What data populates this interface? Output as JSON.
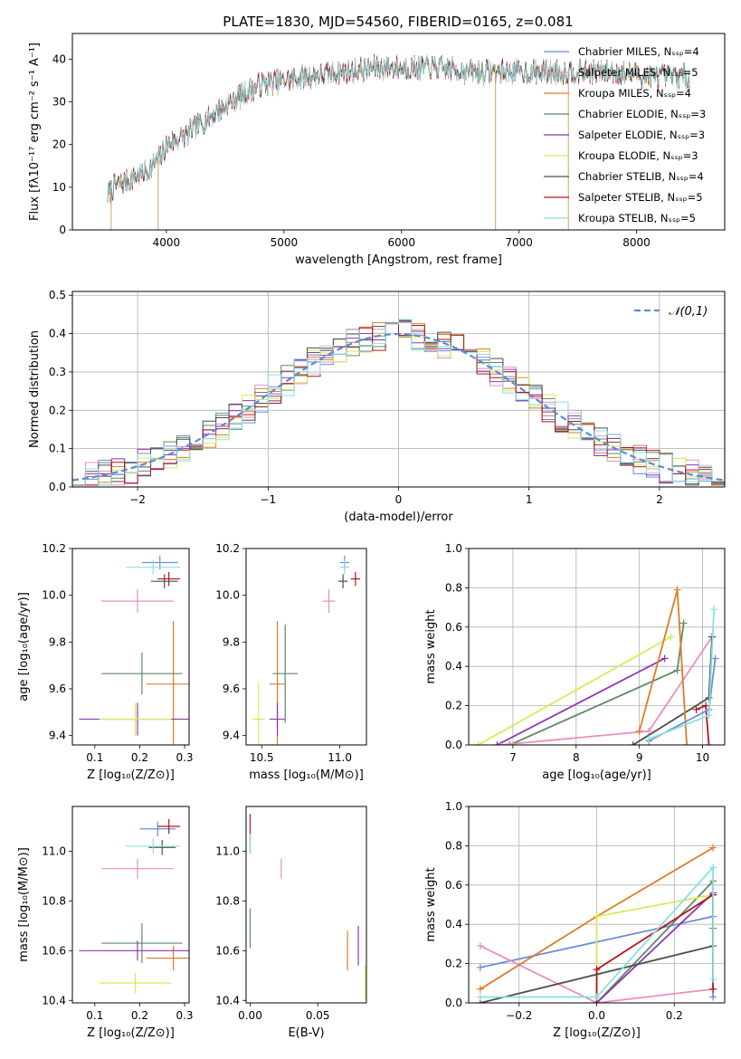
{
  "figure_title": "PLATE=1830, MJD=54560, FIBERID=0165, z=0.081",
  "series_colors": {
    "chabrier_miles": "#6a8fd6",
    "salpeter_miles": "#e88fc0",
    "kroupa_miles": "#e07b29",
    "chabrier_elodie": "#5f8a63",
    "salpeter_elodie": "#8e35b5",
    "kroupa_elodie": "#d6ea5a",
    "chabrier_stelib": "#4d4d4d",
    "salpeter_stelib": "#b0171b",
    "kroupa_stelib": "#8ae0e0"
  },
  "chart_data": [
    {
      "id": "spectrum",
      "type": "line",
      "xlabel": "wavelength [Angstrom, rest frame]",
      "ylabel": "Flux [fλ10⁻¹⁷ erg cm⁻² s⁻¹ A⁻¹]",
      "xlim": [
        3200,
        8750
      ],
      "ylim": [
        0,
        46
      ],
      "xticks": [
        "4000",
        "5000",
        "6000",
        "7000",
        "8000"
      ],
      "yticks": [
        "0",
        "10",
        "20",
        "30",
        "40"
      ],
      "grid": false,
      "legend_position": "top-right",
      "legend": [
        "Chabrier MILES, Nₛₛₚ=4",
        "Salpeter MILES, Nₛₛₚ=5",
        "Kroupa MILES, Nₛₛₚ=4",
        "Chabrier ELODIE, Nₛₛₚ=3",
        "Salpeter ELODIE, Nₛₛₚ=3",
        "Kroupa ELODIE, Nₛₛₚ=3",
        "Chabrier STELIB, Nₛₛₚ=4",
        "Salpeter STELIB, Nₛₛₚ=5",
        "Kroupa STELIB, Nₛₛₚ=5"
      ],
      "continuum": {
        "x": [
          3500,
          3550,
          3700,
          3850,
          3950,
          4000,
          4150,
          4300,
          4450,
          4600,
          4800,
          5000,
          5200,
          5500,
          5800,
          6000,
          6300,
          6600,
          6900,
          7200,
          7500,
          7800,
          8100,
          8400
        ],
        "y": [
          8,
          10,
          12,
          14,
          17,
          20,
          22,
          25,
          28,
          31,
          34,
          35,
          36,
          37,
          38,
          38,
          38,
          37,
          37,
          37,
          37,
          37,
          36,
          36
        ]
      },
      "drops": [
        {
          "x": 3530,
          "y": 0
        },
        {
          "x": 3930,
          "y": 0
        },
        {
          "x": 6800,
          "y": 0
        },
        {
          "x": 7420,
          "y": 0
        }
      ]
    },
    {
      "id": "residuals",
      "type": "histogram",
      "xlabel": "(data-model)/error",
      "ylabel": "Normed distribution",
      "xlim": [
        -2.5,
        2.5
      ],
      "ylim": [
        0,
        0.51
      ],
      "xticks": [
        "−2",
        "−1",
        "0",
        "1",
        "2"
      ],
      "yticks": [
        "0.0",
        "0.1",
        "0.2",
        "0.3",
        "0.4",
        "0.5"
      ],
      "grid": true,
      "legend_position": "top-right",
      "reference_curve": {
        "name": "𝒩(0,1)",
        "mean": 0,
        "sigma": 1
      },
      "bin_width": 0.1
    },
    {
      "id": "age_vs_Z",
      "type": "errorbar",
      "xlabel": "Z [log₁₀(Z/Z⊙)]",
      "ylabel": "age  [log₁₀(age/yr)]",
      "xlim": [
        0.05,
        0.31
      ],
      "ylim": [
        9.36,
        10.2
      ],
      "xticks": [
        "0.1",
        "0.2",
        "0.3"
      ],
      "yticks": [
        "9.4",
        "9.6",
        "9.8",
        "10.0",
        "10.2"
      ],
      "grid": false,
      "points": [
        {
          "key": "chabrier_miles",
          "x": 0.245,
          "y": 10.14,
          "xerr": 0.04,
          "yerr": 0.03
        },
        {
          "key": "salpeter_miles",
          "x": 0.195,
          "y": 9.975,
          "xerr": 0.08,
          "yerr": 0.05
        },
        {
          "key": "kroupa_miles",
          "x": 0.275,
          "y": 9.62,
          "xerr": 0.06,
          "yerr": 0.27
        },
        {
          "key": "chabrier_elodie",
          "x": 0.205,
          "y": 9.665,
          "xerr": 0.09,
          "yerr": 0.09
        },
        {
          "key": "salpeter_elodie",
          "x": 0.195,
          "y": 9.47,
          "xerr": 0.13,
          "yerr": 0.07
        },
        {
          "key": "kroupa_elodie",
          "x": 0.19,
          "y": 9.47,
          "xerr": 0.08,
          "yerr": 0.07
        },
        {
          "key": "chabrier_stelib",
          "x": 0.255,
          "y": 10.06,
          "xerr": 0.03,
          "yerr": 0.03
        },
        {
          "key": "salpeter_stelib",
          "x": 0.265,
          "y": 10.07,
          "xerr": 0.025,
          "yerr": 0.03
        },
        {
          "key": "kroupa_stelib",
          "x": 0.23,
          "y": 10.12,
          "xerr": 0.06,
          "yerr": 0.03
        }
      ]
    },
    {
      "id": "age_vs_mass",
      "type": "errorbar",
      "xlabel": "mass [log₁₀(M/M⊙)]",
      "ylabel": "",
      "xlim": [
        10.4,
        11.17
      ],
      "ylim": [
        9.36,
        10.2
      ],
      "xticks": [
        "10.5",
        "11.0"
      ],
      "yticks": [
        "9.4",
        "9.6",
        "9.8",
        "10.0",
        "10.2"
      ],
      "grid": false,
      "points": [
        {
          "key": "chabrier_miles",
          "x": 11.03,
          "y": 10.14,
          "xerr": 0.03,
          "yerr": 0.03
        },
        {
          "key": "salpeter_miles",
          "x": 10.93,
          "y": 9.975,
          "xerr": 0.04,
          "yerr": 0.05
        },
        {
          "key": "kroupa_miles",
          "x": 10.6,
          "y": 9.62,
          "xerr": 0.05,
          "yerr": 0.27
        },
        {
          "key": "chabrier_elodie",
          "x": 10.65,
          "y": 9.665,
          "xerr": 0.08,
          "yerr": 0.21
        },
        {
          "key": "salpeter_elodie",
          "x": 10.6,
          "y": 9.47,
          "xerr": 0.05,
          "yerr": 0.07
        },
        {
          "key": "kroupa_elodie",
          "x": 10.48,
          "y": 9.47,
          "xerr": 0.04,
          "yerr": 0.16
        },
        {
          "key": "chabrier_stelib",
          "x": 11.02,
          "y": 10.06,
          "xerr": 0.03,
          "yerr": 0.03
        },
        {
          "key": "salpeter_stelib",
          "x": 11.1,
          "y": 10.07,
          "xerr": 0.03,
          "yerr": 0.03
        },
        {
          "key": "kroupa_stelib",
          "x": 11.03,
          "y": 10.12,
          "xerr": 0.03,
          "yerr": 0.03
        }
      ]
    },
    {
      "id": "weight_vs_age",
      "type": "line",
      "xlabel": "age  [log₁₀(age/yr)]",
      "ylabel": "mass weight",
      "xlim": [
        6.3,
        10.35
      ],
      "ylim": [
        0,
        1
      ],
      "xticks": [
        "7",
        "8",
        "9",
        "10"
      ],
      "yticks": [
        "0.0",
        "0.2",
        "0.4",
        "0.6",
        "0.8",
        "1.0"
      ],
      "grid": true,
      "series": [
        {
          "key": "salpeter_elodie",
          "x": [
            6.75,
            9.4
          ],
          "y": [
            0.0,
            0.44
          ]
        },
        {
          "key": "kroupa_elodie",
          "x": [
            6.45,
            9.5
          ],
          "y": [
            0.0,
            0.55
          ]
        },
        {
          "key": "chabrier_elodie",
          "x": [
            6.95,
            9.6,
            9.7
          ],
          "y": [
            0.0,
            0.38,
            0.62
          ]
        },
        {
          "key": "salpeter_miles",
          "x": [
            6.8,
            9.15,
            10.15
          ],
          "y": [
            0.0,
            0.07,
            0.55
          ]
        },
        {
          "key": "chabrier_stelib",
          "x": [
            8.9,
            10.1,
            10.15
          ],
          "y": [
            0.0,
            0.24,
            0.55
          ]
        },
        {
          "key": "kroupa_miles",
          "x": [
            9.0,
            9.6,
            9.75
          ],
          "y": [
            0.07,
            0.79,
            0.0
          ]
        },
        {
          "key": "salpeter_stelib",
          "x": [
            9.9,
            10.05,
            10.1
          ],
          "y": [
            0.18,
            0.2,
            0.0
          ]
        },
        {
          "key": "chabrier_miles",
          "x": [
            9.15,
            10.1,
            10.2
          ],
          "y": [
            0.02,
            0.18,
            0.44
          ]
        },
        {
          "key": "kroupa_stelib",
          "x": [
            9.15,
            10.1,
            10.18
          ],
          "y": [
            0.03,
            0.15,
            0.69
          ]
        }
      ]
    },
    {
      "id": "mass_vs_Z",
      "type": "errorbar",
      "xlabel": "Z [log₁₀(Z/Z⊙)]",
      "ylabel": "mass [log₁₀(M/M⊙)]",
      "xlim": [
        0.05,
        0.31
      ],
      "ylim": [
        10.39,
        11.18
      ],
      "xticks": [
        "0.1",
        "0.2",
        "0.3"
      ],
      "yticks": [
        "10.4",
        "10.6",
        "10.8",
        "11.0"
      ],
      "grid": false,
      "points": [
        {
          "key": "chabrier_miles",
          "x": 0.24,
          "y": 11.09,
          "xerr": 0.04,
          "yerr": 0.03
        },
        {
          "key": "salpeter_miles",
          "x": 0.195,
          "y": 10.93,
          "xerr": 0.08,
          "yerr": 0.04
        },
        {
          "key": "kroupa_miles",
          "x": 0.275,
          "y": 10.57,
          "xerr": 0.06,
          "yerr": 0.05
        },
        {
          "key": "chabrier_elodie",
          "x": 0.205,
          "y": 10.63,
          "xerr": 0.09,
          "yerr": 0.08
        },
        {
          "key": "salpeter_elodie",
          "x": 0.195,
          "y": 10.6,
          "xerr": 0.13,
          "yerr": 0.04
        },
        {
          "key": "kroupa_elodie",
          "x": 0.19,
          "y": 10.47,
          "xerr": 0.08,
          "yerr": 0.04
        },
        {
          "key": "chabrier_stelib",
          "x": 0.25,
          "y": 11.015,
          "xerr": 0.03,
          "yerr": 0.03
        },
        {
          "key": "salpeter_stelib",
          "x": 0.265,
          "y": 11.1,
          "xerr": 0.025,
          "yerr": 0.03
        },
        {
          "key": "kroupa_stelib",
          "x": 0.23,
          "y": 11.02,
          "xerr": 0.06,
          "yerr": 0.03
        }
      ]
    },
    {
      "id": "mass_vs_ebv",
      "type": "errorbar",
      "xlabel": "E(B-V)",
      "ylabel": "",
      "xlim": [
        -0.003,
        0.086
      ],
      "ylim": [
        10.39,
        11.18
      ],
      "xticks": [
        "0.00",
        "0.05"
      ],
      "yticks": [
        "10.4",
        "10.6",
        "10.8",
        "11.0"
      ],
      "grid": false,
      "points": [
        {
          "key": "chabrier_miles",
          "x": 0.0,
          "y": 11.04,
          "xerr": 0,
          "yerr": 0.03
        },
        {
          "key": "salpeter_miles",
          "x": 0.023,
          "y": 10.93,
          "xerr": 0,
          "yerr": 0.04
        },
        {
          "key": "kroupa_miles",
          "x": 0.072,
          "y": 10.6,
          "xerr": 0,
          "yerr": 0.08
        },
        {
          "key": "chabrier_elodie",
          "x": 0.0,
          "y": 10.69,
          "xerr": 0,
          "yerr": 0.08
        },
        {
          "key": "salpeter_elodie",
          "x": 0.08,
          "y": 10.62,
          "xerr": 0,
          "yerr": 0.08
        },
        {
          "key": "kroupa_elodie",
          "x": 0.085,
          "y": 10.47,
          "xerr": 0,
          "yerr": 0.07
        },
        {
          "key": "chabrier_stelib",
          "x": 0.0,
          "y": 11.02,
          "xerr": 0,
          "yerr": 0.03
        },
        {
          "key": "salpeter_stelib",
          "x": 0.0,
          "y": 11.1,
          "xerr": 0,
          "yerr": 0.05
        },
        {
          "key": "kroupa_stelib",
          "x": 0.0,
          "y": 11.03,
          "xerr": 0,
          "yerr": 0.04
        }
      ]
    },
    {
      "id": "weight_vs_Z",
      "type": "line",
      "xlabel": "Z [log₁₀(Z/Z⊙)]",
      "ylabel": "mass weight",
      "xlim": [
        -0.33,
        0.33
      ],
      "ylim": [
        0,
        1
      ],
      "xticks": [
        "−0.2",
        "0.0",
        "0.2"
      ],
      "yticks": [
        "0.0",
        "0.2",
        "0.4",
        "0.6",
        "0.8",
        "1.0"
      ],
      "grid": true,
      "series": [
        {
          "key": "chabrier_miles",
          "x": [
            -0.3,
            0.3,
            0.3
          ],
          "y": [
            0.18,
            0.44,
            0.03
          ]
        },
        {
          "key": "salpeter_miles",
          "x": [
            -0.3,
            0.0,
            0.3
          ],
          "y": [
            0.29,
            0.0,
            0.07
          ]
        },
        {
          "key": "kroupa_miles",
          "x": [
            -0.3,
            0.0,
            0.3
          ],
          "y": [
            0.07,
            0.44,
            0.79
          ]
        },
        {
          "key": "chabrier_elodie",
          "x": [
            0.0,
            0.3,
            0.3
          ],
          "y": [
            0.0,
            0.62,
            0.38
          ]
        },
        {
          "key": "salpeter_elodie",
          "x": [
            0.0,
            0.3
          ],
          "y": [
            0.0,
            0.56
          ]
        },
        {
          "key": "kroupa_elodie",
          "x": [
            0.0,
            0.0,
            0.3
          ],
          "y": [
            0.0,
            0.44,
            0.55
          ]
        },
        {
          "key": "chabrier_stelib",
          "x": [
            -0.3,
            0.3,
            0.3
          ],
          "y": [
            0.0,
            0.29,
            0.55
          ]
        },
        {
          "key": "salpeter_stelib",
          "x": [
            0.0,
            0.0,
            0.3,
            0.3
          ],
          "y": [
            0.0,
            0.17,
            0.55,
            0.07
          ]
        },
        {
          "key": "kroupa_stelib",
          "x": [
            -0.3,
            0.0,
            0.3,
            0.3
          ],
          "y": [
            0.03,
            0.03,
            0.69,
            0.12
          ]
        }
      ]
    }
  ]
}
